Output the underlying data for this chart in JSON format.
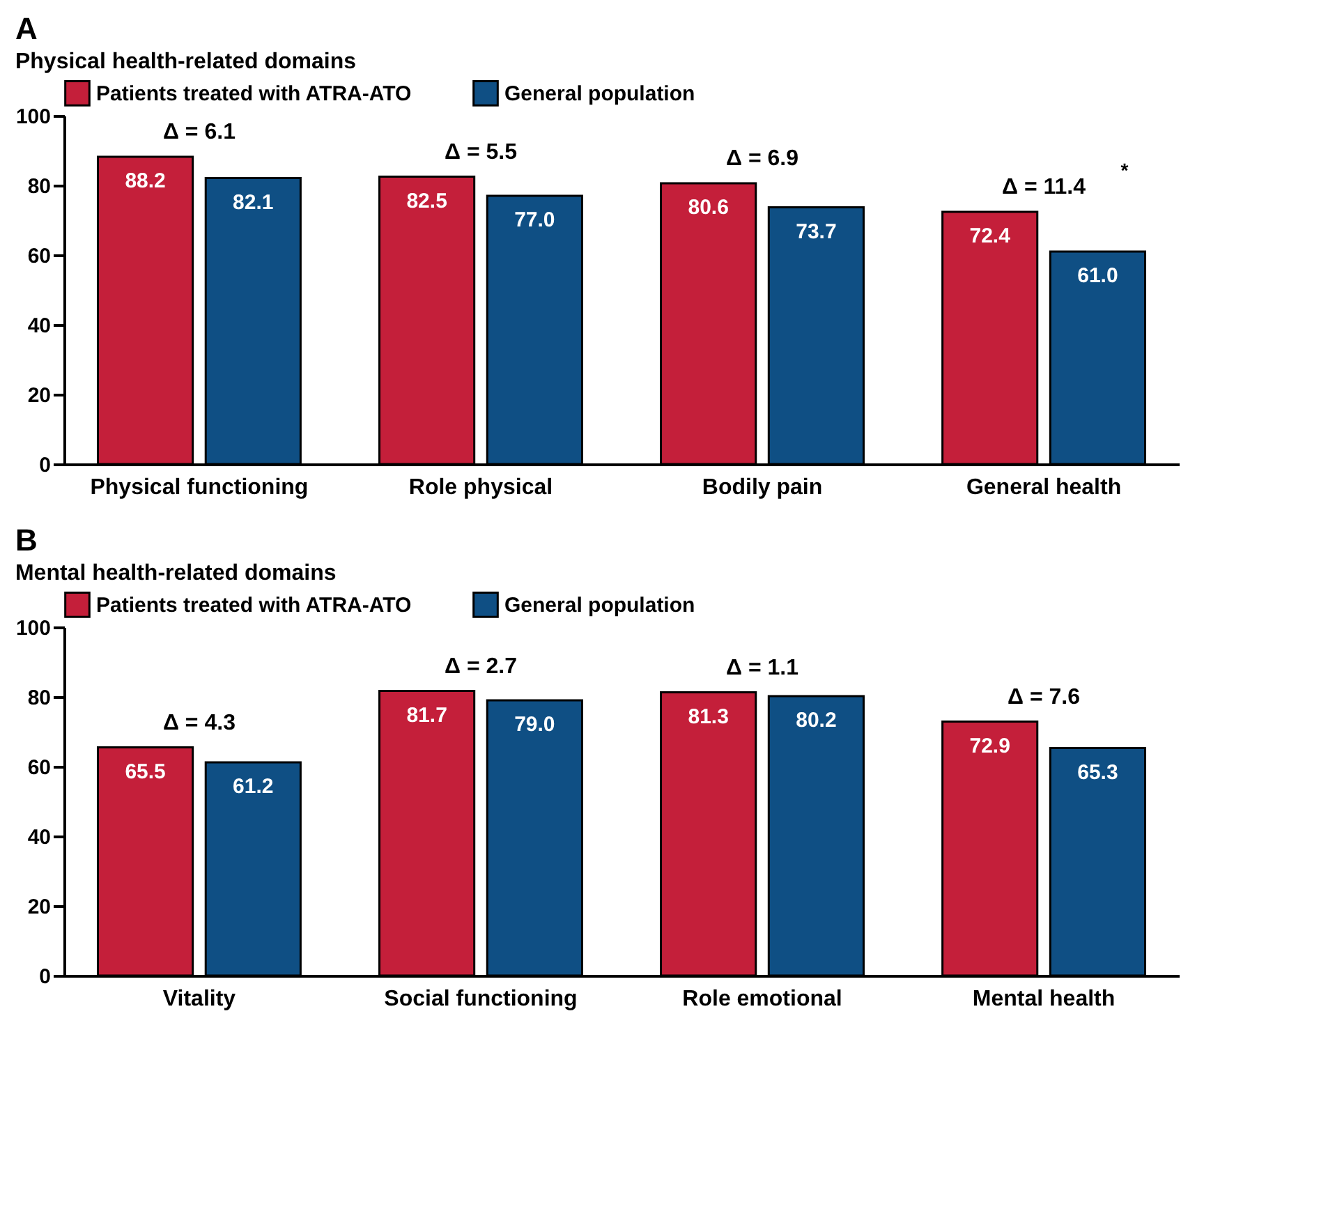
{
  "chart_data": [
    {
      "type": "bar",
      "title": "A",
      "subtitle": "Physical health-related domains",
      "categories": [
        "Physical functioning",
        "Role physical",
        "Bodily pain",
        "General health"
      ],
      "series": [
        {
          "name": "Patients treated with ATRA-ATO",
          "color": "#c41f3a",
          "values": [
            88.2,
            82.5,
            80.6,
            72.4
          ],
          "value_labels": [
            "88.2",
            "82.5",
            "80.6",
            "72.4"
          ]
        },
        {
          "name": "General population",
          "color": "#0f4f84",
          "values": [
            82.1,
            77.0,
            73.7,
            61.0
          ],
          "value_labels": [
            "82.1",
            "77.0",
            "73.7",
            "61.0"
          ]
        }
      ],
      "ylim": [
        0,
        100
      ],
      "yticks": [
        0,
        20,
        40,
        60,
        80,
        100
      ],
      "grid": false,
      "legend": "top",
      "annotations": [
        "Δ = 6.1",
        "Δ = 5.5",
        "Δ = 6.9",
        "Δ = 11.4",
        "*"
      ]
    },
    {
      "type": "bar",
      "title": "B",
      "subtitle": "Mental health-related domains",
      "categories": [
        "Vitality",
        "Social functioning",
        "Role emotional",
        "Mental health"
      ],
      "series": [
        {
          "name": "Patients treated with ATRA-ATO",
          "color": "#c41f3a",
          "values": [
            65.5,
            81.7,
            81.3,
            72.9
          ],
          "value_labels": [
            "65.5",
            "81.7",
            "81.3",
            "72.9"
          ]
        },
        {
          "name": "General population",
          "color": "#0f4f84",
          "values": [
            61.2,
            79.0,
            80.2,
            65.3
          ],
          "value_labels": [
            "61.2",
            "79.0",
            "80.2",
            "65.3"
          ]
        }
      ],
      "ylim": [
        0,
        100
      ],
      "yticks": [
        0,
        20,
        40,
        60,
        80,
        100
      ],
      "grid": false,
      "legend": "top",
      "annotations": [
        "Δ = 4.3",
        "Δ = 2.7",
        "Δ = 1.1",
        "Δ = 7.6"
      ]
    }
  ]
}
